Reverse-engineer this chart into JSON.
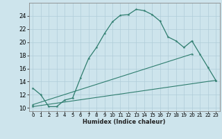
{
  "bg_color": "#cde4ec",
  "grid_color": "#b0cdd8",
  "line_color": "#2e7d6e",
  "xlabel": "Humidex (Indice chaleur)",
  "xlim": [
    -0.5,
    23.5
  ],
  "ylim": [
    9.5,
    26.0
  ],
  "xticks": [
    0,
    1,
    2,
    3,
    4,
    5,
    6,
    7,
    8,
    9,
    10,
    11,
    12,
    13,
    14,
    15,
    16,
    17,
    18,
    19,
    20,
    21,
    22,
    23
  ],
  "yticks": [
    10,
    12,
    14,
    16,
    18,
    20,
    22,
    24
  ],
  "series1_x": [
    0,
    1,
    2,
    3,
    4,
    5,
    6,
    7,
    8,
    9,
    10,
    11,
    12,
    13,
    14,
    15,
    16,
    17,
    18,
    19,
    20,
    21,
    22,
    23
  ],
  "series1_y": [
    13.0,
    12.0,
    10.2,
    10.2,
    11.2,
    11.5,
    14.6,
    17.5,
    19.2,
    21.3,
    23.1,
    24.1,
    24.2,
    25.0,
    24.8,
    24.2,
    23.2,
    20.8,
    20.2,
    19.2,
    20.2,
    18.2,
    16.2,
    14.2
  ],
  "series2_x": [
    0,
    20
  ],
  "series2_y": [
    10.5,
    18.2
  ],
  "series3_x": [
    0,
    23
  ],
  "series3_y": [
    10.2,
    14.2
  ]
}
